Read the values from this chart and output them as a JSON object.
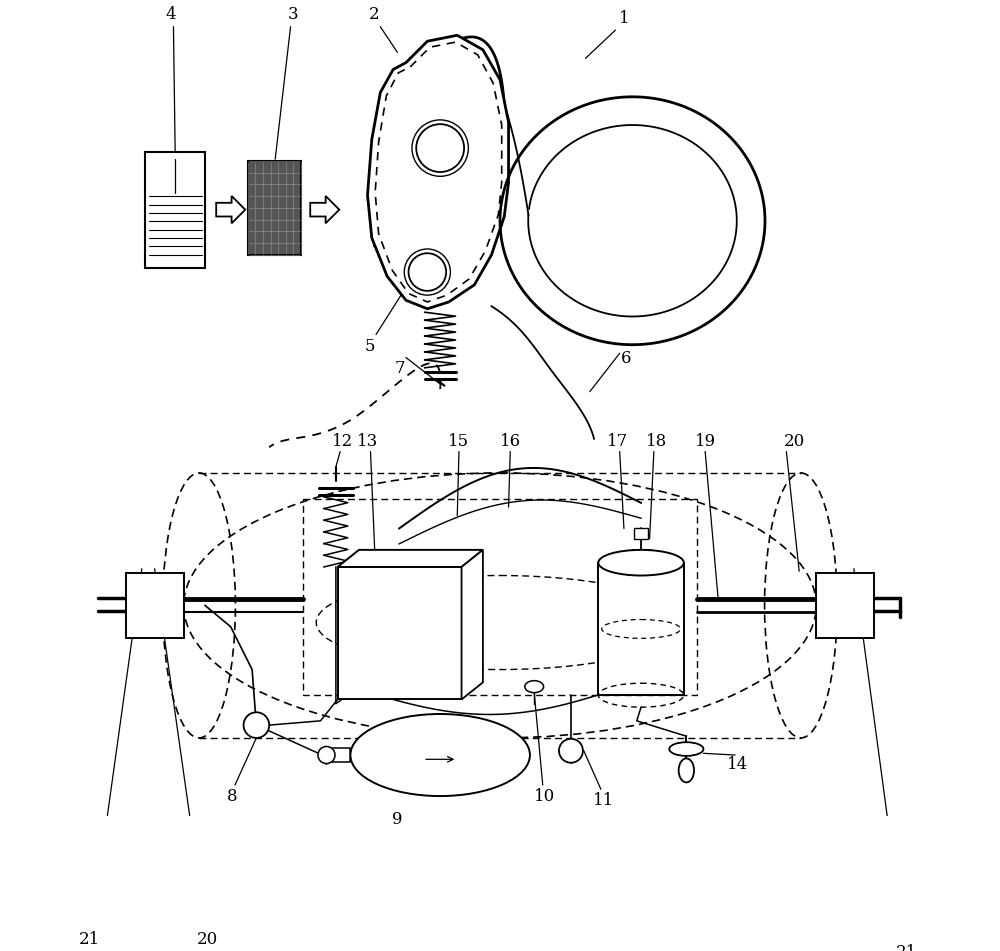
{
  "bg_color": "#ffffff",
  "figsize": [
    10.0,
    9.51
  ],
  "dpi": 100,
  "lw": 1.4,
  "fs": 12
}
